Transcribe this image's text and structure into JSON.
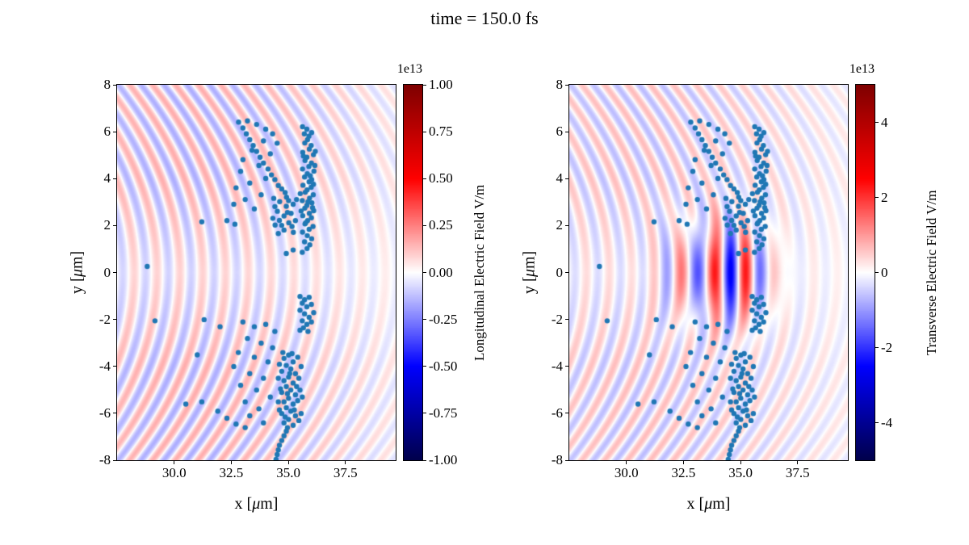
{
  "title": "time = 150.0 fs",
  "chart_data": {
    "type": "scatter+heatmap",
    "title": "time = 150.0 fs",
    "shared": {
      "xlabel_pre": "x [",
      "xlabel_mu": "μ",
      "xlabel_post": "m]",
      "ylabel_pre": "y [",
      "ylabel_mu": "μ",
      "ylabel_post": "m]",
      "xlim": [
        27.5,
        39.7
      ],
      "ylim": [
        -8,
        8
      ],
      "xticks": [
        30.0,
        32.5,
        35.0,
        37.5
      ],
      "xtick_labels": [
        "30.0",
        "32.5",
        "35.0",
        "37.5"
      ],
      "yticks": [
        8,
        6,
        4,
        2,
        0,
        -2,
        -4,
        -6,
        -8
      ],
      "ytick_labels": [
        "8",
        "6",
        "4",
        "2",
        "0",
        "-2",
        "-4",
        "-6",
        "-8"
      ],
      "grid": false,
      "dot_color": "#1f77b4",
      "dot_radius_px": 3.2,
      "colormap": "seismic",
      "colormap_stops": [
        [
          0.0,
          0,
          0,
          76
        ],
        [
          0.25,
          0,
          0,
          255
        ],
        [
          0.5,
          255,
          255,
          255
        ],
        [
          0.75,
          255,
          0,
          0
        ],
        [
          1.0,
          127,
          0,
          0
        ]
      ]
    },
    "charts": [
      {
        "name": "longitudinal-field",
        "colorbar": {
          "label": "Longitudinal Electric Field V/m",
          "offset_text": "1e13",
          "vmin": -1.0,
          "vmax": 1.0,
          "tick_values": [
            1.0,
            0.75,
            0.5,
            0.25,
            0.0,
            -0.25,
            -0.5,
            -0.75,
            -1.0
          ],
          "tick_labels": [
            "1.00",
            "0.75",
            "0.50",
            "0.25",
            "0.00",
            "-0.25",
            "-0.50",
            "-0.75",
            "-1.00"
          ]
        },
        "field": {
          "arc_amplitude": 0.16,
          "arc_wavelength": 1.0,
          "arc_curvature": 0.05,
          "arc_x_center": 30.5,
          "arc_x_width": 9.0,
          "pulse_amplitude": 0
        }
      },
      {
        "name": "transverse-field",
        "colorbar": {
          "label": "Transverse Electric Field V/m",
          "offset_text": "1e13",
          "vmin": -5.0,
          "vmax": 5.0,
          "tick_values": [
            4,
            2,
            0,
            -2,
            -4
          ],
          "tick_labels": [
            "4",
            "2",
            "0",
            "-2",
            "-4"
          ]
        },
        "field": {
          "arc_amplitude": 0.13,
          "arc_wavelength": 1.0,
          "arc_curvature": 0.05,
          "arc_x_center": 30.5,
          "arc_x_width": 9.0,
          "pulse_amplitude": 0.52,
          "pulse_x0": 34.2,
          "pulse_sx": 2.0,
          "pulse_sy": 2.0,
          "pulse_wavelength": 1.4,
          "pulse_phase": 0.5
        }
      }
    ],
    "scatter_points": [
      [
        35.82,
        1.02
      ],
      [
        35.94,
        1.18
      ],
      [
        35.71,
        1.31
      ],
      [
        36.02,
        1.44
      ],
      [
        35.83,
        1.57
      ],
      [
        35.62,
        1.72
      ],
      [
        35.91,
        1.84
      ],
      [
        36.08,
        1.96
      ],
      [
        35.73,
        2.07
      ],
      [
        35.84,
        2.21
      ],
      [
        36.01,
        2.33
      ],
      [
        35.63,
        2.42
      ],
      [
        35.92,
        2.52
      ],
      [
        36.11,
        2.63
      ],
      [
        35.72,
        2.74
      ],
      [
        35.81,
        2.86
      ],
      [
        36.03,
        2.97
      ],
      [
        35.61,
        3.06
      ],
      [
        35.93,
        3.17
      ],
      [
        36.09,
        3.31
      ],
      [
        35.74,
        3.42
      ],
      [
        35.82,
        3.52
      ],
      [
        36.0,
        3.63
      ],
      [
        35.64,
        3.72
      ],
      [
        35.91,
        3.86
      ],
      [
        36.02,
        3.96
      ],
      [
        35.71,
        4.07
      ],
      [
        35.83,
        4.21
      ],
      [
        36.12,
        4.32
      ],
      [
        35.62,
        4.41
      ],
      [
        35.9,
        4.52
      ],
      [
        36.01,
        4.66
      ],
      [
        35.73,
        4.77
      ],
      [
        35.81,
        4.91
      ],
      [
        36.1,
        5.02
      ],
      [
        35.63,
        5.12
      ],
      [
        35.92,
        5.26
      ],
      [
        36.0,
        5.41
      ],
      [
        35.72,
        5.52
      ],
      [
        35.84,
        5.66
      ],
      [
        35.9,
        5.81
      ],
      [
        36.02,
        5.96
      ],
      [
        35.81,
        6.11
      ],
      [
        35.62,
        6.21
      ],
      [
        35.76,
        2.12
      ],
      [
        35.86,
        3.01
      ],
      [
        35.96,
        4.12
      ],
      [
        35.66,
        4.96
      ],
      [
        36.06,
        2.76
      ],
      [
        35.7,
        5.91
      ],
      [
        36.1,
        3.76
      ],
      [
        35.56,
        2.62
      ],
      [
        36.16,
        4.56
      ],
      [
        35.52,
        3.36
      ],
      [
        36.18,
        5.16
      ],
      [
        34.42,
        2.02
      ],
      [
        34.61,
        2.22
      ],
      [
        34.81,
        2.41
      ],
      [
        35.02,
        2.12
      ],
      [
        34.52,
        2.61
      ],
      [
        34.91,
        2.82
      ],
      [
        35.12,
        2.52
      ],
      [
        34.32,
        2.31
      ],
      [
        34.71,
        2.01
      ],
      [
        35.21,
        2.91
      ],
      [
        34.62,
        3.02
      ],
      [
        34.92,
        3.21
      ],
      [
        35.31,
        2.21
      ],
      [
        34.41,
        2.81
      ],
      [
        35.01,
        3.06
      ],
      [
        34.81,
        1.81
      ],
      [
        35.22,
        1.71
      ],
      [
        34.56,
        1.66
      ],
      [
        35.36,
        3.11
      ],
      [
        34.96,
        2.56
      ],
      [
        34.36,
        3.16
      ],
      [
        35.16,
        1.96
      ],
      [
        32.82,
        6.41
      ],
      [
        33.01,
        6.16
      ],
      [
        33.16,
        5.91
      ],
      [
        33.31,
        5.66
      ],
      [
        33.46,
        5.41
      ],
      [
        33.61,
        5.16
      ],
      [
        33.76,
        4.91
      ],
      [
        33.91,
        4.66
      ],
      [
        34.11,
        4.41
      ],
      [
        34.26,
        4.16
      ],
      [
        34.41,
        3.96
      ],
      [
        34.56,
        3.71
      ],
      [
        34.71,
        3.56
      ],
      [
        34.86,
        3.41
      ],
      [
        33.21,
        6.46
      ],
      [
        33.61,
        6.31
      ],
      [
        34.01,
        6.11
      ],
      [
        34.31,
        5.91
      ],
      [
        33.91,
        5.61
      ],
      [
        34.51,
        5.51
      ],
      [
        33.41,
        5.21
      ],
      [
        34.21,
        5.06
      ],
      [
        33.01,
        4.81
      ],
      [
        33.71,
        4.56
      ],
      [
        32.91,
        4.31
      ],
      [
        34.01,
        4.01
      ],
      [
        33.31,
        3.81
      ],
      [
        32.71,
        3.61
      ],
      [
        33.81,
        3.31
      ],
      [
        33.11,
        3.11
      ],
      [
        32.61,
        2.91
      ],
      [
        33.51,
        2.71
      ],
      [
        28.82,
        0.26
      ],
      [
        31.21,
        2.16
      ],
      [
        32.31,
        2.21
      ],
      [
        32.66,
        2.06
      ],
      [
        35.61,
        0.86
      ],
      [
        34.91,
        0.81
      ],
      [
        35.21,
        0.96
      ],
      [
        35.01,
        -3.52
      ],
      [
        34.81,
        -3.66
      ],
      [
        35.21,
        -3.81
      ],
      [
        34.91,
        -3.96
      ],
      [
        35.11,
        -4.11
      ],
      [
        34.71,
        -4.21
      ],
      [
        35.31,
        -4.31
      ],
      [
        35.01,
        -4.46
      ],
      [
        34.81,
        -4.61
      ],
      [
        35.21,
        -4.71
      ],
      [
        34.91,
        -4.86
      ],
      [
        35.11,
        -5.01
      ],
      [
        34.71,
        -5.11
      ],
      [
        35.31,
        -5.21
      ],
      [
        35.01,
        -5.36
      ],
      [
        34.81,
        -5.51
      ],
      [
        35.21,
        -5.61
      ],
      [
        34.91,
        -5.76
      ],
      [
        35.11,
        -5.91
      ],
      [
        34.71,
        -6.01
      ],
      [
        35.31,
        -6.11
      ],
      [
        35.01,
        -6.26
      ],
      [
        34.81,
        -6.41
      ],
      [
        35.21,
        -6.51
      ],
      [
        34.96,
        -6.61
      ],
      [
        35.41,
        -3.61
      ],
      [
        34.61,
        -3.91
      ],
      [
        35.46,
        -4.51
      ],
      [
        34.66,
        -4.96
      ],
      [
        35.41,
        -5.46
      ],
      [
        34.61,
        -5.86
      ],
      [
        35.46,
        -6.31
      ],
      [
        35.16,
        -3.46
      ],
      [
        34.76,
        -3.41
      ],
      [
        35.06,
        -4.31
      ],
      [
        34.96,
        -5.16
      ],
      [
        35.26,
        -5.86
      ],
      [
        34.86,
        -6.16
      ],
      [
        35.56,
        -4.01
      ],
      [
        35.51,
        -5.01
      ],
      [
        35.56,
        -6.01
      ],
      [
        34.56,
        -4.51
      ],
      [
        34.56,
        -5.51
      ],
      [
        35.36,
        -4.86
      ],
      [
        35.61,
        -5.31
      ],
      [
        34.91,
        -6.76
      ],
      [
        34.81,
        -6.96
      ],
      [
        34.71,
        -7.16
      ],
      [
        34.61,
        -7.36
      ],
      [
        34.56,
        -7.56
      ],
      [
        34.51,
        -7.76
      ],
      [
        34.46,
        -7.96
      ],
      [
        35.51,
        -1.02
      ],
      [
        35.71,
        -1.16
      ],
      [
        35.91,
        -1.06
      ],
      [
        35.61,
        -1.31
      ],
      [
        35.81,
        -1.46
      ],
      [
        36.01,
        -1.36
      ],
      [
        35.51,
        -1.61
      ],
      [
        35.71,
        -1.76
      ],
      [
        35.91,
        -1.91
      ],
      [
        35.61,
        -2.06
      ],
      [
        35.81,
        -2.21
      ],
      [
        36.01,
        -2.11
      ],
      [
        35.66,
        -2.36
      ],
      [
        35.86,
        -2.51
      ],
      [
        35.51,
        -2.46
      ],
      [
        36.11,
        -1.71
      ],
      [
        33.01,
        -2.11
      ],
      [
        33.51,
        -2.31
      ],
      [
        34.01,
        -2.21
      ],
      [
        34.41,
        -2.51
      ],
      [
        33.21,
        -2.81
      ],
      [
        33.81,
        -3.01
      ],
      [
        34.31,
        -3.21
      ],
      [
        32.81,
        -3.41
      ],
      [
        33.51,
        -3.61
      ],
      [
        34.11,
        -3.81
      ],
      [
        32.61,
        -4.01
      ],
      [
        33.31,
        -4.31
      ],
      [
        33.91,
        -4.51
      ],
      [
        32.91,
        -4.81
      ],
      [
        33.61,
        -5.01
      ],
      [
        34.21,
        -5.31
      ],
      [
        33.11,
        -5.51
      ],
      [
        33.71,
        -5.81
      ],
      [
        33.31,
        -6.11
      ],
      [
        33.91,
        -6.41
      ],
      [
        32.31,
        -6.21
      ],
      [
        32.71,
        -6.46
      ],
      [
        33.11,
        -6.61
      ],
      [
        31.91,
        -5.91
      ],
      [
        29.16,
        -2.06
      ],
      [
        31.31,
        -2.01
      ],
      [
        31.21,
        -5.51
      ],
      [
        30.51,
        -5.61
      ],
      [
        32.01,
        -2.31
      ],
      [
        31.01,
        -3.51
      ]
    ]
  }
}
